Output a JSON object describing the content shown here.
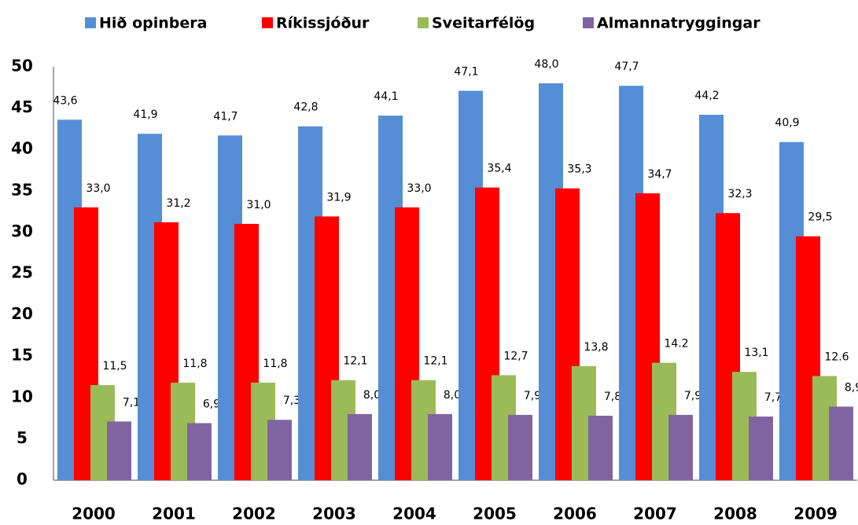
{
  "chart_data": {
    "type": "bar",
    "categories": [
      "2000",
      "2001",
      "2002",
      "2003",
      "2004",
      "2005",
      "2006",
      "2007",
      "2008",
      "2009"
    ],
    "series": [
      {
        "name": "Hið opinbera",
        "color": "#558ed5",
        "values": [
          43.6,
          41.9,
          41.7,
          42.8,
          44.1,
          47.1,
          48.0,
          47.7,
          44.2,
          40.9
        ],
        "value_labels": [
          "43,6",
          "41,9",
          "41,7",
          "42,8",
          "44,1",
          "47,1",
          "48,0",
          "47,7",
          "44,2",
          "40,9"
        ]
      },
      {
        "name": "Ríkissjóður",
        "color": "#ff0000",
        "values": [
          33.0,
          31.2,
          31.0,
          31.9,
          33.0,
          35.4,
          35.3,
          34.7,
          32.3,
          29.5
        ],
        "value_labels": [
          "33,0",
          "31,2",
          "31,0",
          "31,9",
          "33,0",
          "35,4",
          "35,3",
          "34,7",
          "32,3",
          "29,5"
        ]
      },
      {
        "name": "Sveitarfélög",
        "color": "#9bbb59",
        "values": [
          11.5,
          11.8,
          11.8,
          12.1,
          12.1,
          12.7,
          13.8,
          14.2,
          13.1,
          12.6
        ],
        "value_labels": [
          "11,5",
          "11,8",
          "11,8",
          "12,1",
          "12,1",
          "12,7",
          "13,8",
          "14.2",
          "13,1",
          "12.6"
        ]
      },
      {
        "name": "Almannatryggingar",
        "color": "#8064a2",
        "values": [
          7.1,
          6.9,
          7.3,
          8.0,
          8.0,
          7.9,
          7.8,
          7.9,
          7.7,
          8.9
        ],
        "value_labels": [
          "7,1",
          "6,9",
          "7,3",
          "8,0",
          "8,0",
          "7,9",
          "7,8",
          "7,9",
          "7,7",
          "8,9"
        ]
      }
    ],
    "ylim": [
      0,
      50
    ],
    "yticks": [
      0,
      5,
      10,
      15,
      20,
      25,
      30,
      35,
      40,
      45,
      50
    ],
    "grid": false,
    "legend": "top"
  }
}
